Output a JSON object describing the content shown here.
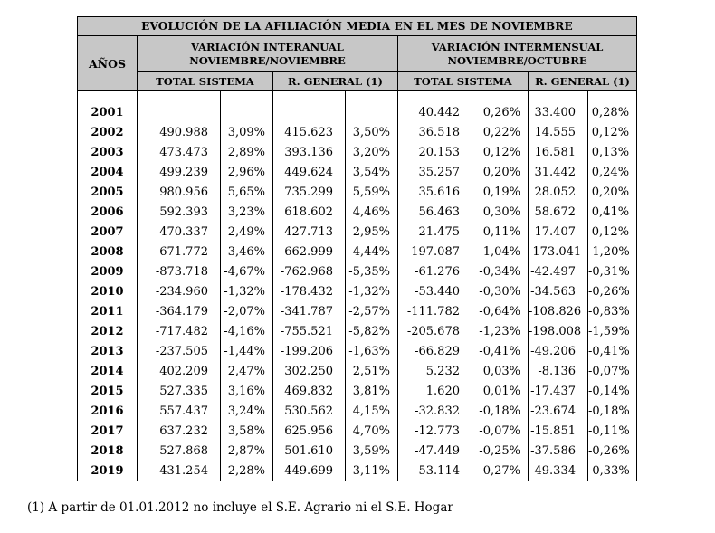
{
  "table": {
    "title": "EVOLUCIÓN DE LA AFILIACIÓN MEDIA EN EL MES DE NOVIEMBRE",
    "header": {
      "years_label": "AÑOS",
      "interannual_line1": "VARIACIÓN INTERANUAL",
      "interannual_line2": "NOVIEMBRE/NOVIEMBRE",
      "intermensual_line1": "VARIACIÓN INTERMENSUAL",
      "intermensual_line2": "NOVIEMBRE/OCTUBRE",
      "subheaders": [
        "TOTAL SISTEMA",
        "R. GENERAL (1)",
        "TOTAL SISTEMA",
        "R. GENERAL (1)"
      ]
    },
    "rows": [
      {
        "year": "2001",
        "cells": [
          "",
          "",
          "",
          "",
          "40.442",
          "0,26%",
          "33.400",
          "0,28%"
        ]
      },
      {
        "year": "2002",
        "cells": [
          "490.988",
          "3,09%",
          "415.623",
          "3,50%",
          "36.518",
          "0,22%",
          "14.555",
          "0,12%"
        ]
      },
      {
        "year": "2003",
        "cells": [
          "473.473",
          "2,89%",
          "393.136",
          "3,20%",
          "20.153",
          "0,12%",
          "16.581",
          "0,13%"
        ]
      },
      {
        "year": "2004",
        "cells": [
          "499.239",
          "2,96%",
          "449.624",
          "3,54%",
          "35.257",
          "0,20%",
          "31.442",
          "0,24%"
        ]
      },
      {
        "year": "2005",
        "cells": [
          "980.956",
          "5,65%",
          "735.299",
          "5,59%",
          "35.616",
          "0,19%",
          "28.052",
          "0,20%"
        ]
      },
      {
        "year": "2006",
        "cells": [
          "592.393",
          "3,23%",
          "618.602",
          "4,46%",
          "56.463",
          "0,30%",
          "58.672",
          "0,41%"
        ]
      },
      {
        "year": "2007",
        "cells": [
          "470.337",
          "2,49%",
          "427.713",
          "2,95%",
          "21.475",
          "0,11%",
          "17.407",
          "0,12%"
        ]
      },
      {
        "year": "2008",
        "cells": [
          "-671.772",
          "-3,46%",
          "-662.999",
          "-4,44%",
          "-197.087",
          "-1,04%",
          "-173.041",
          "-1,20%"
        ]
      },
      {
        "year": "2009",
        "cells": [
          "-873.718",
          "-4,67%",
          "-762.968",
          "-5,35%",
          "-61.276",
          "-0,34%",
          "-42.497",
          "-0,31%"
        ]
      },
      {
        "year": "2010",
        "cells": [
          "-234.960",
          "-1,32%",
          "-178.432",
          "-1,32%",
          "-53.440",
          "-0,30%",
          "-34.563",
          "-0,26%"
        ]
      },
      {
        "year": "2011",
        "cells": [
          "-364.179",
          "-2,07%",
          "-341.787",
          "-2,57%",
          "-111.782",
          "-0,64%",
          "-108.826",
          "-0,83%"
        ]
      },
      {
        "year": "2012",
        "cells": [
          "-717.482",
          "-4,16%",
          "-755.521",
          "-5,82%",
          "-205.678",
          "-1,23%",
          "-198.008",
          "-1,59%"
        ]
      },
      {
        "year": "2013",
        "cells": [
          "-237.505",
          "-1,44%",
          "-199.206",
          "-1,63%",
          "-66.829",
          "-0,41%",
          "-49.206",
          "-0,41%"
        ]
      },
      {
        "year": "2014",
        "cells": [
          "402.209",
          "2,47%",
          "302.250",
          "2,51%",
          "5.232",
          "0,03%",
          "-8.136",
          "-0,07%"
        ]
      },
      {
        "year": "2015",
        "cells": [
          "527.335",
          "3,16%",
          "469.832",
          "3,81%",
          "1.620",
          "0,01%",
          "-17.437",
          "-0,14%"
        ]
      },
      {
        "year": "2016",
        "cells": [
          "557.437",
          "3,24%",
          "530.562",
          "4,15%",
          "-32.832",
          "-0,18%",
          "-23.674",
          "-0,18%"
        ]
      },
      {
        "year": "2017",
        "cells": [
          "637.232",
          "3,58%",
          "625.956",
          "4,70%",
          "-12.773",
          "-0,07%",
          "-15.851",
          "-0,11%"
        ]
      },
      {
        "year": "2018",
        "cells": [
          "527.868",
          "2,87%",
          "501.610",
          "3,59%",
          "-47.449",
          "-0,25%",
          "-37.586",
          "-0,26%"
        ]
      },
      {
        "year": "2019",
        "cells": [
          "431.254",
          "2,28%",
          "449.699",
          "3,11%",
          "-53.114",
          "-0,27%",
          "-49.334",
          "-0,33%"
        ]
      }
    ]
  },
  "footnote": "(1) A partir de 01.01.2012 no incluye el S.E. Agrario ni el S.E. Hogar",
  "colors": {
    "header_gray": "#c7c7c7",
    "border": "#000000",
    "background": "#ffffff"
  }
}
